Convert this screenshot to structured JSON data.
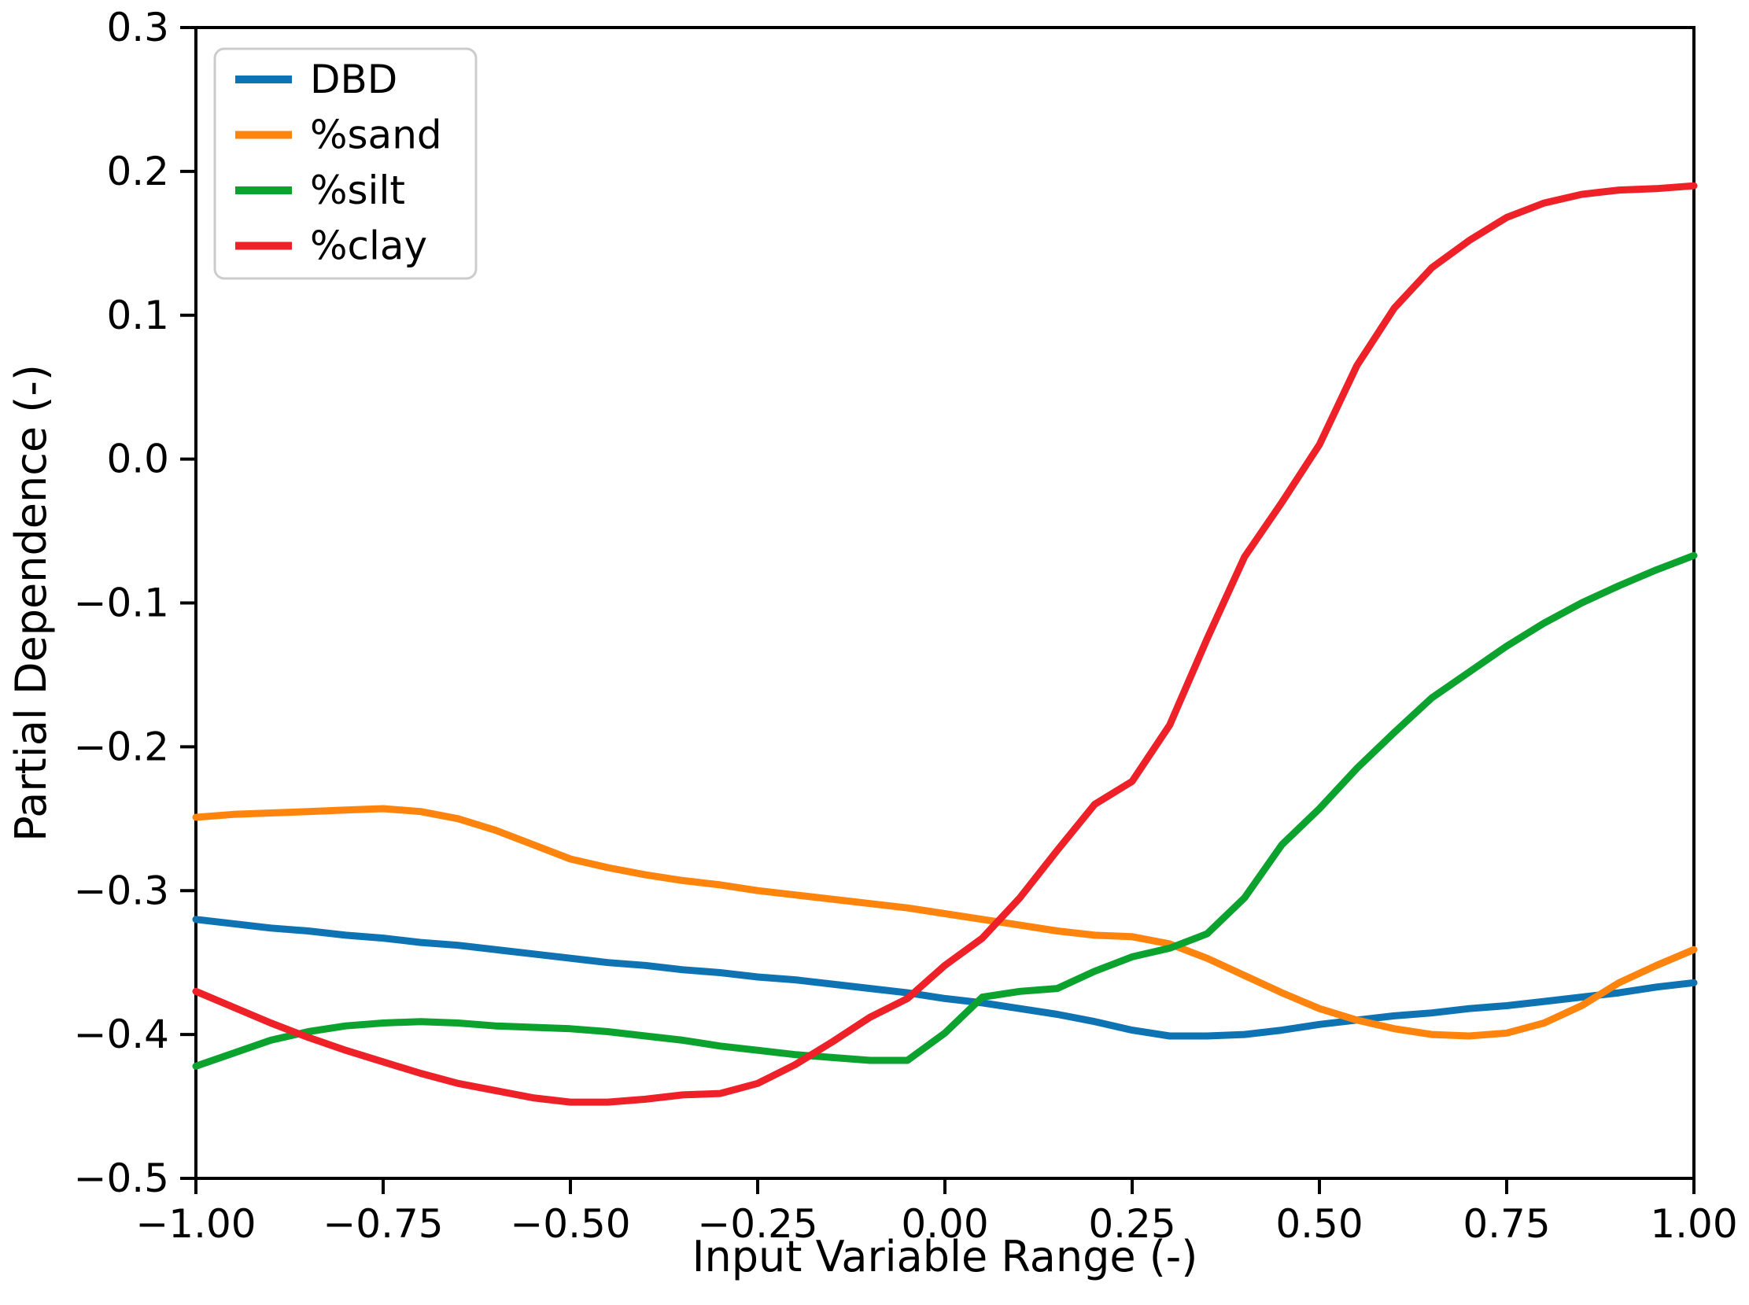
{
  "figure": {
    "background": "#ffffff",
    "spine_color": "#000000",
    "tick_color": "#000000",
    "legend_border_color": "#cccccc"
  },
  "chart_data": {
    "type": "line",
    "title": "",
    "xlabel": "Input Variable Range (-)",
    "ylabel": "Partial Dependence (-)",
    "xlim": [
      -1.0,
      1.0
    ],
    "ylim": [
      -0.5,
      0.3
    ],
    "grid": false,
    "legend_position": "upper left",
    "x_ticks": [
      -1.0,
      -0.75,
      -0.5,
      -0.25,
      0.0,
      0.25,
      0.5,
      0.75,
      1.0
    ],
    "x_tick_labels": [
      "−1.00",
      "−0.75",
      "−0.50",
      "−0.25",
      "0.00",
      "0.25",
      "0.50",
      "0.75",
      "1.00"
    ],
    "y_ticks": [
      0.3,
      0.2,
      0.1,
      0.0,
      -0.1,
      -0.2,
      -0.3,
      -0.4,
      -0.5
    ],
    "y_tick_labels": [
      "0.3",
      "0.2",
      "0.1",
      "0.0",
      "−0.1",
      "−0.2",
      "−0.3",
      "−0.4",
      "−0.5"
    ],
    "x": [
      -1.0,
      -0.95,
      -0.9,
      -0.85,
      -0.8,
      -0.75,
      -0.7,
      -0.65,
      -0.6,
      -0.55,
      -0.5,
      -0.45,
      -0.4,
      -0.35,
      -0.3,
      -0.25,
      -0.2,
      -0.15,
      -0.1,
      -0.05,
      0.0,
      0.05,
      0.1,
      0.15,
      0.2,
      0.25,
      0.3,
      0.35,
      0.4,
      0.45,
      0.5,
      0.55,
      0.6,
      0.65,
      0.7,
      0.75,
      0.8,
      0.85,
      0.9,
      0.95,
      1.0
    ],
    "series": [
      {
        "name": "DBD",
        "color": "#0e73b2",
        "values": [
          -0.32,
          -0.323,
          -0.326,
          -0.328,
          -0.331,
          -0.333,
          -0.336,
          -0.338,
          -0.341,
          -0.344,
          -0.347,
          -0.35,
          -0.352,
          -0.355,
          -0.357,
          -0.36,
          -0.362,
          -0.365,
          -0.368,
          -0.371,
          -0.375,
          -0.378,
          -0.382,
          -0.386,
          -0.391,
          -0.397,
          -0.401,
          -0.401,
          -0.4,
          -0.397,
          -0.393,
          -0.39,
          -0.387,
          -0.385,
          -0.382,
          -0.38,
          -0.377,
          -0.374,
          -0.371,
          -0.367,
          -0.364
        ]
      },
      {
        "name": "%sand",
        "color": "#ff840e",
        "values": [
          -0.249,
          -0.247,
          -0.246,
          -0.245,
          -0.244,
          -0.243,
          -0.245,
          -0.25,
          -0.258,
          -0.268,
          -0.278,
          -0.284,
          -0.289,
          -0.293,
          -0.296,
          -0.3,
          -0.303,
          -0.306,
          -0.309,
          -0.312,
          -0.316,
          -0.32,
          -0.324,
          -0.328,
          -0.331,
          -0.332,
          -0.337,
          -0.347,
          -0.359,
          -0.371,
          -0.382,
          -0.39,
          -0.396,
          -0.4,
          -0.401,
          -0.399,
          -0.392,
          -0.38,
          -0.364,
          -0.352,
          -0.341
        ]
      },
      {
        "name": "%silt",
        "color": "#0ca22e",
        "values": [
          -0.422,
          -0.413,
          -0.404,
          -0.398,
          -0.394,
          -0.392,
          -0.391,
          -0.392,
          -0.394,
          -0.395,
          -0.396,
          -0.398,
          -0.401,
          -0.404,
          -0.408,
          -0.411,
          -0.414,
          -0.416,
          -0.418,
          -0.418,
          -0.399,
          -0.374,
          -0.37,
          -0.368,
          -0.356,
          -0.346,
          -0.34,
          -0.33,
          -0.305,
          -0.268,
          -0.243,
          -0.215,
          -0.19,
          -0.166,
          -0.148,
          -0.13,
          -0.114,
          -0.1,
          -0.088,
          -0.077,
          -0.067
        ]
      },
      {
        "name": "%clay",
        "color": "#ee2128",
        "values": [
          -0.37,
          -0.381,
          -0.392,
          -0.402,
          -0.411,
          -0.419,
          -0.427,
          -0.434,
          -0.439,
          -0.444,
          -0.447,
          -0.447,
          -0.445,
          -0.442,
          -0.441,
          -0.434,
          -0.421,
          -0.405,
          -0.388,
          -0.375,
          -0.352,
          -0.333,
          -0.305,
          -0.272,
          -0.24,
          -0.224,
          -0.185,
          -0.125,
          -0.068,
          -0.03,
          0.01,
          0.065,
          0.105,
          0.133,
          0.152,
          0.168,
          0.178,
          0.184,
          0.187,
          0.188,
          0.19
        ]
      }
    ]
  }
}
